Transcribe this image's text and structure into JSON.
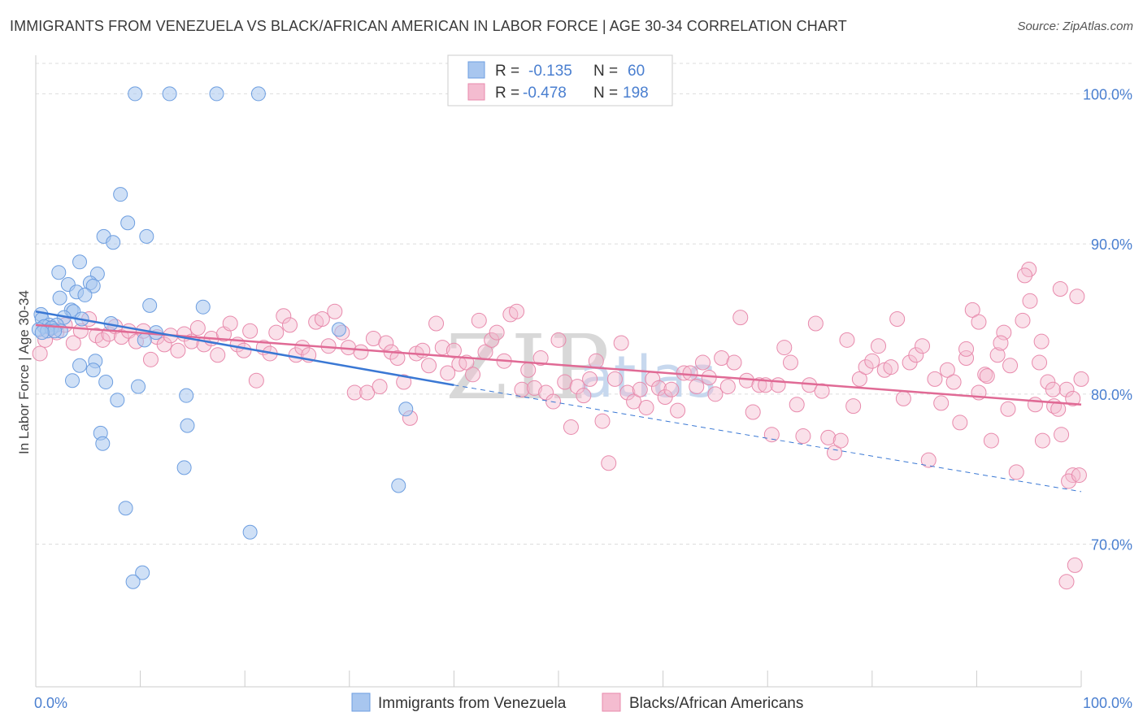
{
  "header": {
    "title": "IMMIGRANTS FROM VENEZUELA VS BLACK/AFRICAN AMERICAN IN LABOR FORCE | AGE 30-34 CORRELATION CHART",
    "source": "Source: ZipAtlas.com"
  },
  "watermark": {
    "zip": "ZIP",
    "atlas": "atlas"
  },
  "legend_box": {
    "rows": [
      {
        "r_label": "R =",
        "r_value": "-0.135",
        "n_label": "N =",
        "n_value": "60"
      },
      {
        "r_label": "R =",
        "r_value": "-0.478",
        "n_label": "N =",
        "n_value": "198"
      }
    ]
  },
  "chart_data": {
    "type": "scatter",
    "xlabel": "",
    "ylabel": "In Labor Force | Age 30-34",
    "xlim": [
      0,
      100
    ],
    "ylim": [
      60.5,
      103
    ],
    "x_tick_labels": [
      "0.0%",
      "100.0%"
    ],
    "y_ticks": [
      70,
      80,
      90,
      100
    ],
    "y_tick_labels": [
      "70.0%",
      "80.0%",
      "90.0%",
      "100.0%"
    ],
    "grid": true,
    "legend_position": "top-center",
    "colors": {
      "blue_fill": "#a8c6ef",
      "blue_stroke": "#6d9ee0",
      "blue_line": "#3a78d4",
      "pink_fill": "#f4bcd0",
      "pink_stroke": "#e88aac",
      "pink_line": "#e06a95",
      "grid": "#dddddd",
      "tick": "#4a7fd0"
    },
    "series": [
      {
        "name": "Immigrants from Venezuela",
        "color": "#a8c6ef",
        "r": -0.135,
        "n": 60,
        "trend": {
          "x": [
            0,
            40
          ],
          "y": [
            85.5,
            80.6
          ],
          "dashed_to": {
            "x": 100,
            "y": 73.5
          }
        },
        "points": [
          [
            9.5,
            100
          ],
          [
            12.8,
            100
          ],
          [
            17.3,
            100
          ],
          [
            21.3,
            100
          ],
          [
            8.1,
            93.3
          ],
          [
            8.8,
            91.4
          ],
          [
            6.5,
            90.5
          ],
          [
            7.4,
            90.1
          ],
          [
            10.6,
            90.5
          ],
          [
            4.2,
            88.8
          ],
          [
            2.2,
            88.1
          ],
          [
            5.9,
            88.0
          ],
          [
            5.2,
            87.4
          ],
          [
            5.5,
            87.2
          ],
          [
            3.1,
            87.3
          ],
          [
            3.9,
            86.8
          ],
          [
            2.3,
            86.4
          ],
          [
            4.7,
            86.6
          ],
          [
            10.9,
            85.9
          ],
          [
            16.0,
            85.8
          ],
          [
            3.4,
            85.6
          ],
          [
            3.6,
            85.5
          ],
          [
            0.5,
            85.3
          ],
          [
            2.7,
            85.1
          ],
          [
            0.6,
            85.0
          ],
          [
            4.4,
            85.0
          ],
          [
            7.2,
            84.7
          ],
          [
            1.3,
            84.6
          ],
          [
            2.0,
            84.6
          ],
          [
            0.8,
            84.5
          ],
          [
            1.5,
            84.4
          ],
          [
            0.3,
            84.3
          ],
          [
            1.1,
            84.2
          ],
          [
            2.4,
            84.2
          ],
          [
            1.8,
            84.2
          ],
          [
            0.6,
            84.1
          ],
          [
            11.5,
            84.1
          ],
          [
            29.0,
            84.3
          ],
          [
            10.4,
            83.6
          ],
          [
            5.7,
            82.2
          ],
          [
            4.2,
            81.9
          ],
          [
            5.5,
            81.6
          ],
          [
            3.5,
            80.9
          ],
          [
            6.7,
            80.8
          ],
          [
            9.8,
            80.5
          ],
          [
            7.8,
            79.6
          ],
          [
            14.4,
            79.9
          ],
          [
            35.4,
            79.0
          ],
          [
            14.5,
            77.9
          ],
          [
            6.2,
            77.4
          ],
          [
            6.4,
            76.7
          ],
          [
            14.2,
            75.1
          ],
          [
            8.6,
            72.4
          ],
          [
            34.7,
            73.9
          ],
          [
            20.5,
            70.8
          ],
          [
            10.2,
            68.1
          ],
          [
            9.3,
            67.5
          ]
        ]
      },
      {
        "name": "Blacks/African Americans",
        "color": "#f4bcd0",
        "r": -0.478,
        "n": 198,
        "trend": {
          "x": [
            0,
            100
          ],
          "y": [
            84.6,
            79.3
          ]
        },
        "points": [
          [
            0.4,
            82.7
          ],
          [
            0.9,
            83.6
          ],
          [
            1.5,
            84.4
          ],
          [
            2.0,
            84.1
          ],
          [
            2.8,
            84.6
          ],
          [
            3.6,
            83.4
          ],
          [
            4.3,
            84.2
          ],
          [
            5.1,
            85.0
          ],
          [
            5.8,
            83.9
          ],
          [
            6.4,
            83.6
          ],
          [
            7.0,
            84.0
          ],
          [
            7.6,
            84.5
          ],
          [
            8.2,
            83.8
          ],
          [
            8.9,
            84.2
          ],
          [
            9.6,
            83.5
          ],
          [
            10.3,
            84.2
          ],
          [
            11.0,
            82.3
          ],
          [
            11.6,
            83.8
          ],
          [
            12.3,
            83.3
          ],
          [
            12.9,
            83.9
          ],
          [
            13.6,
            82.9
          ],
          [
            14.2,
            84.0
          ],
          [
            14.9,
            83.5
          ],
          [
            15.5,
            84.4
          ],
          [
            16.1,
            83.3
          ],
          [
            16.8,
            83.7
          ],
          [
            17.4,
            82.6
          ],
          [
            18.0,
            84.0
          ],
          [
            18.6,
            84.7
          ],
          [
            19.3,
            83.3
          ],
          [
            19.9,
            82.9
          ],
          [
            20.5,
            84.2
          ],
          [
            21.1,
            80.9
          ],
          [
            21.8,
            83.1
          ],
          [
            22.4,
            82.7
          ],
          [
            23.0,
            84.1
          ],
          [
            23.7,
            85.2
          ],
          [
            24.3,
            84.6
          ],
          [
            24.9,
            82.6
          ],
          [
            25.5,
            83.1
          ],
          [
            26.1,
            82.6
          ],
          [
            26.8,
            84.8
          ],
          [
            27.4,
            85.0
          ],
          [
            28.0,
            83.2
          ],
          [
            28.6,
            85.5
          ],
          [
            29.3,
            84.1
          ],
          [
            29.9,
            83.1
          ],
          [
            30.5,
            80.1
          ],
          [
            31.1,
            82.8
          ],
          [
            31.7,
            80.1
          ],
          [
            32.3,
            83.7
          ],
          [
            32.9,
            80.5
          ],
          [
            33.5,
            83.4
          ],
          [
            34.0,
            82.8
          ],
          [
            34.6,
            82.4
          ],
          [
            35.2,
            80.8
          ],
          [
            35.8,
            78.4
          ],
          [
            36.4,
            82.7
          ],
          [
            37.0,
            82.9
          ],
          [
            37.6,
            81.9
          ],
          [
            38.3,
            84.7
          ],
          [
            38.9,
            83.1
          ],
          [
            39.4,
            81.4
          ],
          [
            40.0,
            82.9
          ],
          [
            40.5,
            82.0
          ],
          [
            41.2,
            82.1
          ],
          [
            41.8,
            81.3
          ],
          [
            42.4,
            84.9
          ],
          [
            43.0,
            82.8
          ],
          [
            43.6,
            83.6
          ],
          [
            44.1,
            84.1
          ],
          [
            44.8,
            82.2
          ],
          [
            45.4,
            85.3
          ],
          [
            46.0,
            85.5
          ],
          [
            46.5,
            80.3
          ],
          [
            47.1,
            81.6
          ],
          [
            47.7,
            80.4
          ],
          [
            48.3,
            82.4
          ],
          [
            48.8,
            80.1
          ],
          [
            49.5,
            79.5
          ],
          [
            50.0,
            83.6
          ],
          [
            50.6,
            80.8
          ],
          [
            51.2,
            77.8
          ],
          [
            51.8,
            80.5
          ],
          [
            52.4,
            79.9
          ],
          [
            53.0,
            81.0
          ],
          [
            53.6,
            82.2
          ],
          [
            54.2,
            78.2
          ],
          [
            54.8,
            75.4
          ],
          [
            55.4,
            81.0
          ],
          [
            56.0,
            83.4
          ],
          [
            56.6,
            80.1
          ],
          [
            57.2,
            79.5
          ],
          [
            57.8,
            80.3
          ],
          [
            58.4,
            79.1
          ],
          [
            59.0,
            81.0
          ],
          [
            59.6,
            80.4
          ],
          [
            60.2,
            79.8
          ],
          [
            60.8,
            80.3
          ],
          [
            61.4,
            78.9
          ],
          [
            62.0,
            81.4
          ],
          [
            62.6,
            81.4
          ],
          [
            63.2,
            80.5
          ],
          [
            63.8,
            82.1
          ],
          [
            64.4,
            81.1
          ],
          [
            65.0,
            80.0
          ],
          [
            65.6,
            82.4
          ],
          [
            66.2,
            80.5
          ],
          [
            66.8,
            82.1
          ],
          [
            67.4,
            85.1
          ],
          [
            68.0,
            80.9
          ],
          [
            68.6,
            78.8
          ],
          [
            69.2,
            80.6
          ],
          [
            69.8,
            80.6
          ],
          [
            70.4,
            77.3
          ],
          [
            71.0,
            80.6
          ],
          [
            71.6,
            83.1
          ],
          [
            72.2,
            82.1
          ],
          [
            72.8,
            79.3
          ],
          [
            73.4,
            77.2
          ],
          [
            74.0,
            80.6
          ],
          [
            74.6,
            84.7
          ],
          [
            75.2,
            80.2
          ],
          [
            75.8,
            77.1
          ],
          [
            76.4,
            76.1
          ],
          [
            77.0,
            76.9
          ],
          [
            77.6,
            83.6
          ],
          [
            78.2,
            79.2
          ],
          [
            78.8,
            81.0
          ],
          [
            79.4,
            81.8
          ],
          [
            80.0,
            82.2
          ],
          [
            80.6,
            83.2
          ],
          [
            81.2,
            81.6
          ],
          [
            81.8,
            81.8
          ],
          [
            82.4,
            85.0
          ],
          [
            83.0,
            79.7
          ],
          [
            83.6,
            82.1
          ],
          [
            84.2,
            82.6
          ],
          [
            84.8,
            83.2
          ],
          [
            85.4,
            75.6
          ],
          [
            86.0,
            81.0
          ],
          [
            86.6,
            79.4
          ],
          [
            87.2,
            81.6
          ],
          [
            87.8,
            80.8
          ],
          [
            88.4,
            78.1
          ],
          [
            89.0,
            82.4
          ],
          [
            89.6,
            85.6
          ],
          [
            90.2,
            80.1
          ],
          [
            90.8,
            81.3
          ],
          [
            91.4,
            76.9
          ],
          [
            92.0,
            82.6
          ],
          [
            92.6,
            84.1
          ],
          [
            93.2,
            81.9
          ],
          [
            93.8,
            74.8
          ],
          [
            94.4,
            84.9
          ],
          [
            95.0,
            88.3
          ],
          [
            95.6,
            79.3
          ],
          [
            96.2,
            83.5
          ],
          [
            96.8,
            80.8
          ],
          [
            97.4,
            79.2
          ],
          [
            98.0,
            87.0
          ],
          [
            98.6,
            80.3
          ],
          [
            99.2,
            79.7
          ],
          [
            99.6,
            86.5
          ],
          [
            100.0,
            81.0
          ],
          [
            92.3,
            83.4
          ],
          [
            94.6,
            87.9
          ],
          [
            90.2,
            84.8
          ],
          [
            95.1,
            86.2
          ],
          [
            96.0,
            82.1
          ],
          [
            97.3,
            80.3
          ],
          [
            98.1,
            77.3
          ],
          [
            99.2,
            74.6
          ],
          [
            99.4,
            68.6
          ],
          [
            98.6,
            67.5
          ],
          [
            98.8,
            74.2
          ],
          [
            99.8,
            74.6
          ],
          [
            97.8,
            79.0
          ],
          [
            96.3,
            76.9
          ],
          [
            93.0,
            79.0
          ],
          [
            91.0,
            81.2
          ],
          [
            89.0,
            83.0
          ]
        ]
      }
    ]
  },
  "bottom_legend": {
    "items": [
      {
        "label": "Immigrants from Venezuela"
      },
      {
        "label": "Blacks/African Americans"
      }
    ]
  }
}
